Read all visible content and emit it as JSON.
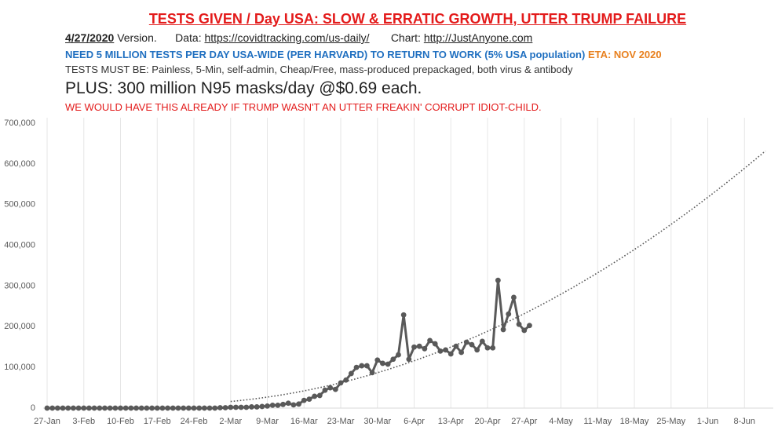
{
  "header": {
    "title": "TESTS GIVEN / Day USA:  SLOW & ERRATIC GROWTH, UTTER TRUMP FAILURE",
    "version": "4/27/2020",
    "version_suffix": "Version.",
    "data_label": "Data:",
    "data_url": "https://covidtracking.com/us-daily/",
    "chart_label": "Chart:",
    "chart_url": "http://JustAnyone.com",
    "need": "NEED 5 MILLION TESTS PER DAY USA-WIDE (PER HARVARD) TO RETURN TO WORK (5% USA population)",
    "eta": "ETA: NOV 2020",
    "requirements": "TESTS MUST BE: Painless, 5-Min, self-admin, Cheap/Free, mass-produced prepackaged, both virus & antibody",
    "plus": "PLUS:  300 million N95 masks/day @$0.69 each.",
    "note": "WE WOULD HAVE THIS ALREADY IF TRUMP WASN'T AN UTTER FREAKIN' CORRUPT IDIOT-CHILD."
  },
  "chart_data": {
    "type": "line",
    "grid": "x",
    "categories": [
      "27-Jan",
      null,
      null,
      null,
      null,
      null,
      null,
      "3-Feb",
      null,
      null,
      null,
      null,
      null,
      null,
      "10-Feb",
      null,
      null,
      null,
      null,
      null,
      null,
      "17-Feb",
      null,
      null,
      null,
      null,
      null,
      null,
      "24-Feb",
      null,
      null,
      null,
      null,
      null,
      null,
      "2-Mar",
      null,
      null,
      null,
      null,
      null,
      null,
      "9-Mar",
      null,
      null,
      null,
      null,
      null,
      null,
      "16-Mar",
      null,
      null,
      null,
      null,
      null,
      null,
      "23-Mar",
      null,
      null,
      null,
      null,
      null,
      null,
      "30-Mar",
      null,
      null,
      null,
      null,
      null,
      null,
      "6-Apr",
      null,
      null,
      null,
      null,
      null,
      null,
      "13-Apr",
      null,
      null,
      null,
      null,
      null,
      null,
      "20-Apr",
      null,
      null,
      null,
      null,
      null,
      null,
      "27-Apr",
      null,
      null,
      null,
      null,
      null,
      null,
      "4-May",
      null,
      null,
      null,
      null,
      null,
      null,
      "11-May",
      null,
      null,
      null,
      null,
      null,
      null,
      "18-May",
      null,
      null,
      null,
      null,
      null,
      null,
      "25-May",
      null,
      null,
      null,
      null,
      null,
      null,
      "1-Jun",
      null,
      null,
      null,
      null,
      null,
      null,
      "8-Jun",
      null,
      null,
      null,
      null
    ],
    "ylim": [
      0,
      700000
    ],
    "yticks": [
      0,
      {
        "value": 100000,
        "label": "100,000"
      },
      {
        "value": 200000,
        "label": "200,000"
      },
      {
        "value": 300000,
        "label": "300,000"
      },
      {
        "value": 400000,
        "label": "400,000"
      },
      {
        "value": 500000,
        "label": "500,000"
      },
      {
        "value": 600000,
        "label": "600,000"
      },
      {
        "value": 700000,
        "label": "700,000"
      }
    ],
    "series": [
      {
        "color": "#595959",
        "style": "solid",
        "markers": true,
        "values": [
          0,
          0,
          0,
          0,
          0,
          0,
          0,
          0,
          0,
          0,
          0,
          0,
          0,
          0,
          0,
          0,
          0,
          0,
          0,
          0,
          0,
          0,
          0,
          0,
          0,
          0,
          0,
          0,
          0,
          0,
          0,
          0,
          0,
          1000,
          1000,
          2000,
          2000,
          2000,
          2000,
          3000,
          3000,
          4000,
          5000,
          7000,
          7000,
          9000,
          12000,
          8000,
          10000,
          19000,
          22000,
          29000,
          31000,
          44000,
          50000,
          46000,
          62000,
          69000,
          85000,
          100000,
          104000,
          104000,
          87000,
          118000,
          110000,
          108000,
          120000,
          131000,
          229000,
          120000,
          150000,
          152000,
          146000,
          166000,
          158000,
          140000,
          143000,
          133000,
          152000,
          137000,
          162000,
          156000,
          143000,
          164000,
          148000,
          148000,
          314000,
          193000,
          231000,
          272000,
          206000,
          191000,
          203000,
          null,
          null,
          null,
          null,
          null,
          null,
          null,
          null,
          null,
          null,
          null,
          null,
          null,
          null,
          null,
          null,
          null,
          null,
          null,
          null,
          null,
          null,
          null,
          null,
          null,
          null,
          null,
          null,
          null,
          null,
          null,
          null,
          null,
          null,
          null,
          null,
          null,
          null,
          null,
          null,
          null,
          null,
          null,
          null,
          null
        ]
      },
      {
        "color": "#595959",
        "style": "dotted",
        "markers": false,
        "values": [
          null,
          null,
          null,
          null,
          null,
          null,
          null,
          null,
          null,
          null,
          null,
          null,
          null,
          null,
          null,
          null,
          null,
          null,
          null,
          null,
          null,
          null,
          null,
          null,
          null,
          null,
          null,
          null,
          null,
          null,
          null,
          null,
          null,
          null,
          null,
          16300,
          17500,
          18900,
          20300,
          21800,
          23500,
          25200,
          27000,
          28900,
          30900,
          33000,
          35200,
          37500,
          39900,
          42300,
          44900,
          47600,
          50300,
          53200,
          56100,
          59200,
          62300,
          65600,
          68900,
          72300,
          75800,
          79400,
          83200,
          87000,
          90900,
          94900,
          98900,
          103100,
          107400,
          111800,
          116200,
          120800,
          125500,
          130200,
          135100,
          140000,
          145000,
          150200,
          155400,
          160700,
          166100,
          171700,
          177300,
          183000,
          188800,
          194700,
          200600,
          206700,
          212900,
          219200,
          225600,
          232000,
          238600,
          245200,
          252000,
          258800,
          265700,
          272800,
          279900,
          287100,
          294400,
          301800,
          309400,
          317000,
          324600,
          332400,
          340300,
          348300,
          356400,
          364500,
          372800,
          381200,
          389600,
          398200,
          406800,
          415500,
          424400,
          433300,
          442300,
          451500,
          460700,
          470000,
          479400,
          488900,
          498500,
          508200,
          518000,
          527800,
          537800,
          547900,
          558000,
          568300,
          578600,
          589100,
          599600,
          610300,
          621000,
          631800
        ]
      }
    ]
  }
}
